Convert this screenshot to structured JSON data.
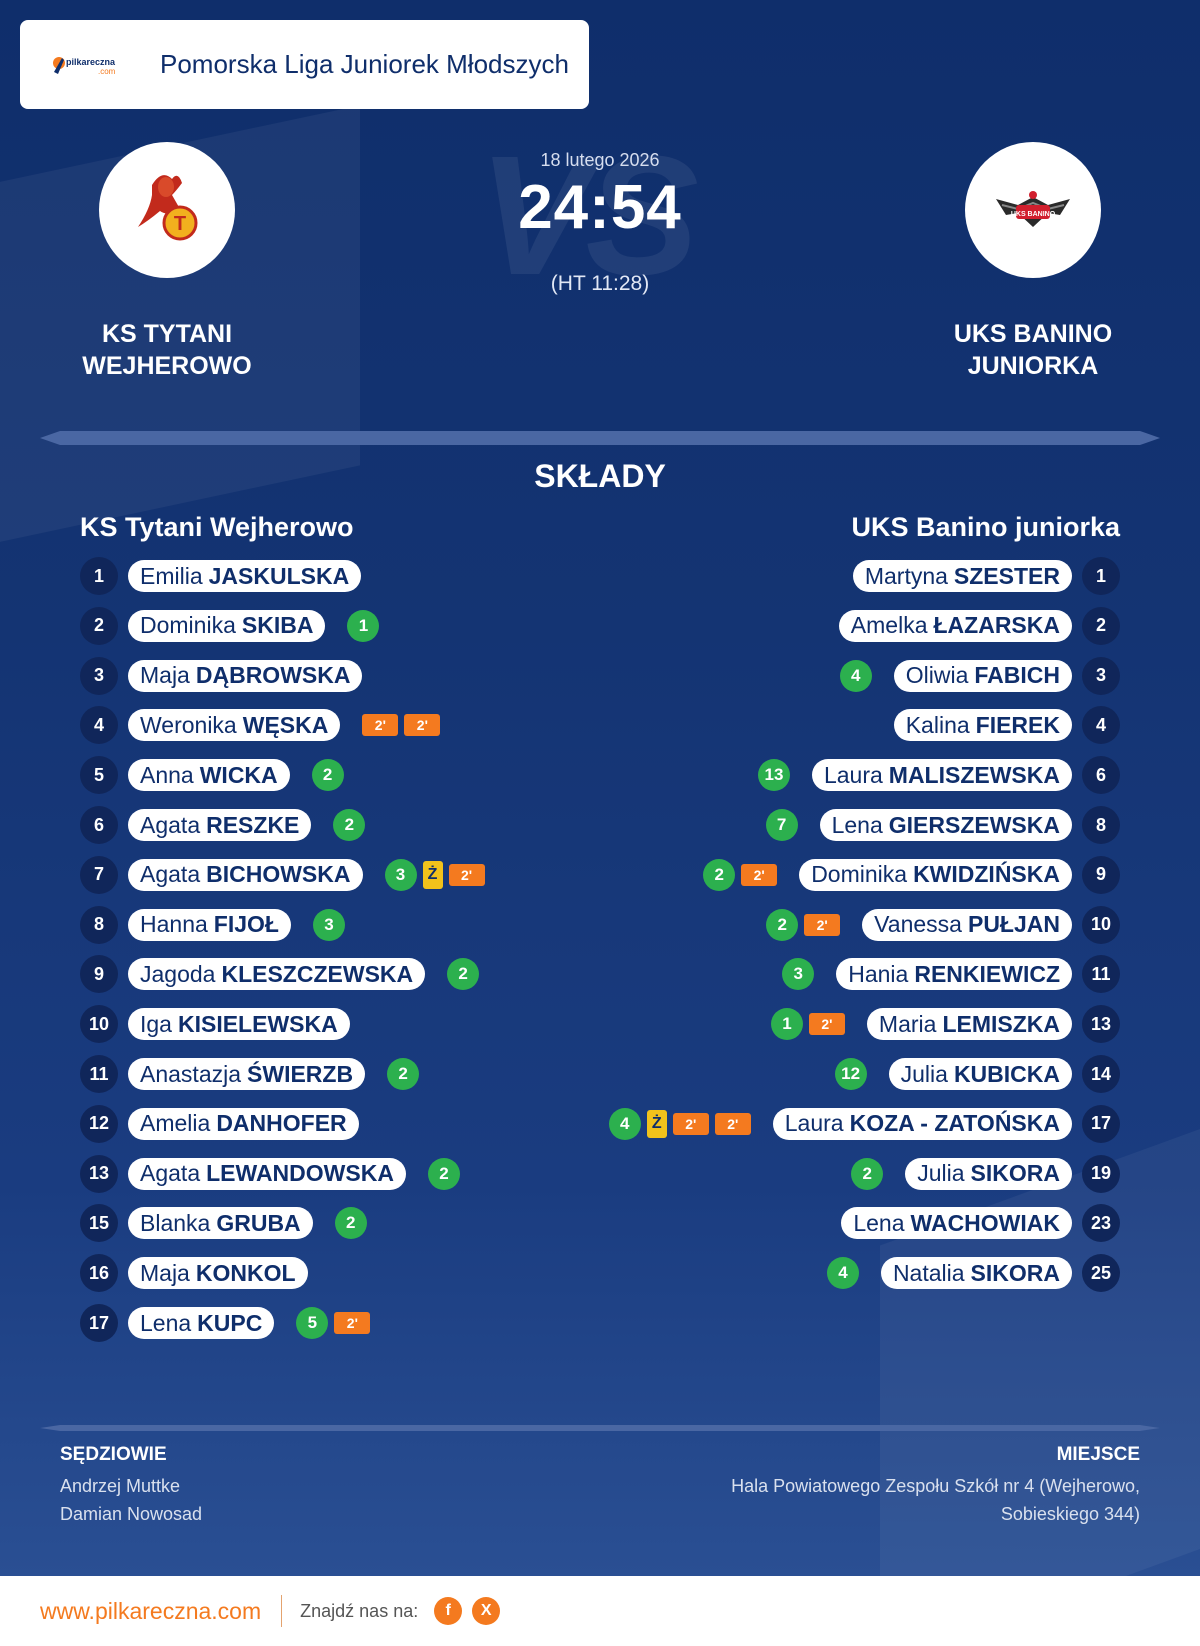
{
  "league": {
    "name": "Pomorska Liga Juniorek Młodszych",
    "logo_icon": "pilkareczna-logo-icon",
    "logo_text_1": "pilkareczna",
    "logo_text_2": ".com"
  },
  "match": {
    "date": "18 lutego 2026",
    "score": "24:54",
    "halftime": "(HT 11:28)"
  },
  "home": {
    "name_line1": "KS TYTANI",
    "name_line2": "WEJHEROWO",
    "logo_icon": "tytani-crest-icon"
  },
  "away": {
    "name_line1": "UKS BANINO",
    "name_line2": "JUNIORKA",
    "logo_icon": "banino-crest-icon",
    "logo_text": "UKS BANINO"
  },
  "lineups": {
    "title": "SKŁADY",
    "home_team": "KS Tytani Wejherowo",
    "away_team": "UKS Banino juniorka",
    "home_players": [
      {
        "number": "1",
        "first": "Emilia",
        "last": "JASKULSKA",
        "events": []
      },
      {
        "number": "2",
        "first": "Dominika",
        "last": "SKIBA",
        "events": [
          {
            "type": "goals",
            "text": "1"
          }
        ]
      },
      {
        "number": "3",
        "first": "Maja",
        "last": "DĄBROWSKA",
        "events": []
      },
      {
        "number": "4",
        "first": "Weronika",
        "last": "WĘSKA",
        "events": [
          {
            "type": "susp",
            "text": "2'"
          },
          {
            "type": "susp",
            "text": "2'"
          }
        ]
      },
      {
        "number": "5",
        "first": "Anna",
        "last": "WICKA",
        "events": [
          {
            "type": "goals",
            "text": "2"
          }
        ]
      },
      {
        "number": "6",
        "first": "Agata",
        "last": "RESZKE",
        "events": [
          {
            "type": "goals",
            "text": "2"
          }
        ]
      },
      {
        "number": "7",
        "first": "Agata",
        "last": "BICHOWSKA",
        "events": [
          {
            "type": "goals",
            "text": "3"
          },
          {
            "type": "yellow",
            "text": "Ż"
          },
          {
            "type": "susp",
            "text": "2'"
          }
        ]
      },
      {
        "number": "8",
        "first": "Hanna",
        "last": "FIJOŁ",
        "events": [
          {
            "type": "goals",
            "text": "3"
          }
        ]
      },
      {
        "number": "9",
        "first": "Jagoda",
        "last": "KLESZCZEWSKA",
        "events": [
          {
            "type": "goals",
            "text": "2"
          }
        ]
      },
      {
        "number": "10",
        "first": "Iga",
        "last": "KISIELEWSKA",
        "events": []
      },
      {
        "number": "11",
        "first": "Anastazja",
        "last": "ŚWIERZB",
        "events": [
          {
            "type": "goals",
            "text": "2"
          }
        ]
      },
      {
        "number": "12",
        "first": "Amelia",
        "last": "DANHOFER",
        "events": []
      },
      {
        "number": "13",
        "first": "Agata",
        "last": "LEWANDOWSKA",
        "events": [
          {
            "type": "goals",
            "text": "2"
          }
        ]
      },
      {
        "number": "15",
        "first": "Blanka",
        "last": "GRUBA",
        "events": [
          {
            "type": "goals",
            "text": "2"
          }
        ]
      },
      {
        "number": "16",
        "first": "Maja",
        "last": "KONKOL",
        "events": []
      },
      {
        "number": "17",
        "first": "Lena",
        "last": "KUPC",
        "events": [
          {
            "type": "goals",
            "text": "5"
          },
          {
            "type": "susp",
            "text": "2'"
          }
        ]
      }
    ],
    "away_players": [
      {
        "number": "1",
        "first": "Martyna",
        "last": "SZESTER",
        "events": []
      },
      {
        "number": "2",
        "first": "Amelka",
        "last": "ŁAZARSKA",
        "events": []
      },
      {
        "number": "3",
        "first": "Oliwia",
        "last": "FABICH",
        "events": [
          {
            "type": "goals",
            "text": "4"
          }
        ]
      },
      {
        "number": "4",
        "first": "Kalina",
        "last": "FIEREK",
        "events": []
      },
      {
        "number": "6",
        "first": "Laura",
        "last": "MALISZEWSKA",
        "events": [
          {
            "type": "goals",
            "text": "13"
          }
        ]
      },
      {
        "number": "8",
        "first": "Lena",
        "last": "GIERSZEWSKA",
        "events": [
          {
            "type": "goals",
            "text": "7"
          }
        ]
      },
      {
        "number": "9",
        "first": "Dominika",
        "last": "KWIDZIŃSKA",
        "events": [
          {
            "type": "goals",
            "text": "2"
          },
          {
            "type": "susp",
            "text": "2'"
          }
        ]
      },
      {
        "number": "10",
        "first": "Vanessa",
        "last": "PUŁJAN",
        "events": [
          {
            "type": "goals",
            "text": "2"
          },
          {
            "type": "susp",
            "text": "2'"
          }
        ]
      },
      {
        "number": "11",
        "first": "Hania",
        "last": "RENKIEWICZ",
        "events": [
          {
            "type": "goals",
            "text": "3"
          }
        ]
      },
      {
        "number": "13",
        "first": "Maria",
        "last": "LEMISZKA",
        "events": [
          {
            "type": "goals",
            "text": "1"
          },
          {
            "type": "susp",
            "text": "2'"
          }
        ]
      },
      {
        "number": "14",
        "first": "Julia",
        "last": "KUBICKA",
        "events": [
          {
            "type": "goals",
            "text": "12"
          }
        ]
      },
      {
        "number": "17",
        "first": "Laura",
        "last": "KOZA - ZATOŃSKA",
        "events": [
          {
            "type": "goals",
            "text": "4"
          },
          {
            "type": "yellow",
            "text": "Ż"
          },
          {
            "type": "susp",
            "text": "2'"
          },
          {
            "type": "susp",
            "text": "2'"
          }
        ]
      },
      {
        "number": "19",
        "first": "Julia",
        "last": "SIKORA",
        "events": [
          {
            "type": "goals",
            "text": "2"
          }
        ]
      },
      {
        "number": "23",
        "first": "Lena",
        "last": "WACHOWIAK",
        "events": []
      },
      {
        "number": "25",
        "first": "Natalia",
        "last": "SIKORA",
        "events": [
          {
            "type": "goals",
            "text": "4"
          }
        ]
      }
    ]
  },
  "officials": {
    "referees_label": "SĘDZIOWIE",
    "referee_1": "Andrzej Muttke",
    "referee_2": "Damian Nowosad",
    "venue_label": "MIEJSCE",
    "venue_line1": "Hala Powiatowego Zespołu Szkół nr 4 (Wejherowo,",
    "venue_line2": "Sobieskiego 344)"
  },
  "footer": {
    "url": "www.pilkareczna.com",
    "find_us": "Znajdź nas na:",
    "facebook_label": "f",
    "x_label": "X"
  },
  "colors": {
    "background": "#143473",
    "accent": "#f47a1f",
    "goal": "#2cb04e",
    "yellow_card": "#f2c21b"
  }
}
